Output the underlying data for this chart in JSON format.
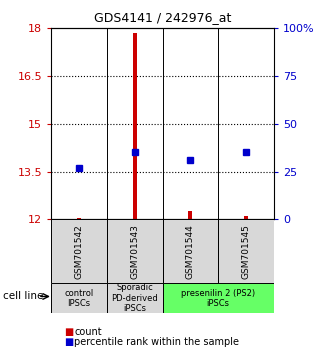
{
  "title": "GDS4141 / 242976_at",
  "samples": [
    "GSM701542",
    "GSM701543",
    "GSM701544",
    "GSM701545"
  ],
  "red_values": [
    12.05,
    17.85,
    12.28,
    12.12
  ],
  "blue_values": [
    13.62,
    14.12,
    13.88,
    14.12
  ],
  "red_base": 12.0,
  "ylim": [
    12,
    18
  ],
  "yticks": [
    12,
    13.5,
    15,
    16.5,
    18
  ],
  "ytick_labels": [
    "12",
    "13.5",
    "15",
    "16.5",
    "18"
  ],
  "y2ticks": [
    0,
    25,
    50,
    75,
    100
  ],
  "y2tick_labels": [
    "0",
    "25",
    "50",
    "75",
    "100%"
  ],
  "groups": [
    {
      "label": "control\nIPSCs",
      "color": "#d8d8d8",
      "span": [
        0,
        1
      ]
    },
    {
      "label": "Sporadic\nPD-derived\niPSCs",
      "color": "#d8d8d8",
      "span": [
        1,
        2
      ]
    },
    {
      "label": "presenilin 2 (PS2)\niPSCs",
      "color": "#66ff66",
      "span": [
        2,
        4
      ]
    }
  ],
  "cell_line_label": "cell line",
  "legend_red": "count",
  "legend_blue": "percentile rank within the sample",
  "red_color": "#cc0000",
  "blue_color": "#0000cc",
  "bar_width": 0.07
}
